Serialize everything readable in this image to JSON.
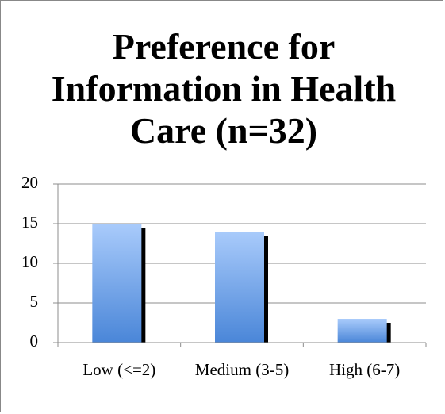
{
  "chart_data": {
    "type": "bar",
    "title": "Preference for Information in Health Care (n=32)",
    "categories": [
      "Low (<=2)",
      "Medium (3-5)",
      "High (6-7)"
    ],
    "values": [
      15,
      14,
      3
    ],
    "color": "#4a86d8",
    "ylim": [
      0,
      20
    ],
    "yticks": [
      0,
      5,
      10,
      15,
      20
    ],
    "grid": true
  }
}
